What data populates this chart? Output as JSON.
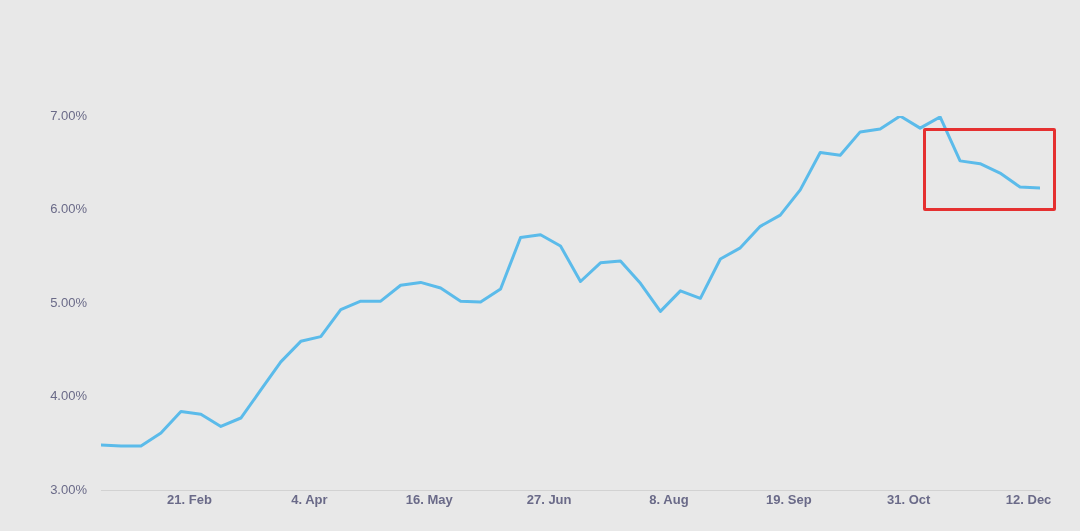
{
  "chart_data": {
    "type": "line",
    "x": [
      "--01-21",
      "--01-28",
      "--02-04",
      "--02-11",
      "--02-18",
      "--02-25",
      "--03-04",
      "--03-11",
      "--03-18",
      "--03-25",
      "--04-01",
      "--04-08",
      "--04-15",
      "--04-22",
      "--04-29",
      "--05-06",
      "--05-13",
      "--05-20",
      "--05-27",
      "--06-03",
      "--06-10",
      "--06-17",
      "--06-24",
      "--07-01",
      "--07-08",
      "--07-15",
      "--07-22",
      "--07-29",
      "--08-05",
      "--08-12",
      "--08-19",
      "--08-26",
      "--09-02",
      "--09-09",
      "--09-16",
      "--09-23",
      "--09-30",
      "--10-07",
      "--10-14",
      "--10-21",
      "--10-28",
      "--11-04",
      "--11-11",
      "--11-18",
      "--11-25",
      "--12-02",
      "--12-09",
      "--12-16"
    ],
    "series": [
      {
        "color": "#5bbbea",
        "values": [
          3.48,
          3.47,
          3.47,
          3.61,
          3.84,
          3.81,
          3.68,
          3.77,
          4.07,
          4.37,
          4.59,
          4.64,
          4.93,
          5.02,
          5.02,
          5.19,
          5.22,
          5.16,
          5.02,
          5.01,
          5.15,
          5.7,
          5.73,
          5.61,
          5.23,
          5.43,
          5.45,
          5.21,
          4.91,
          5.13,
          5.05,
          5.47,
          5.59,
          5.82,
          5.94,
          6.21,
          6.61,
          6.58,
          6.83,
          6.86,
          7.0,
          6.87,
          6.99,
          6.52,
          6.49,
          6.39,
          6.24,
          6.23
        ]
      }
    ],
    "xticks": [
      {
        "value": "--02-21",
        "label": "21. Feb"
      },
      {
        "value": "--04-04",
        "label": "4. Apr"
      },
      {
        "value": "--05-16",
        "label": "16. May"
      },
      {
        "value": "--06-27",
        "label": "27. Jun"
      },
      {
        "value": "--08-08",
        "label": "8. Aug"
      },
      {
        "value": "--09-19",
        "label": "19. Sep"
      },
      {
        "value": "--10-31",
        "label": "31. Oct"
      },
      {
        "value": "--12-12",
        "label": "12. Dec"
      }
    ],
    "xlim": [
      "--01-21",
      "--12-16"
    ],
    "ylim": [
      3,
      7
    ],
    "yticks": [
      {
        "value": 3,
        "label": "3.00%"
      },
      {
        "value": 4,
        "label": "4.00%"
      },
      {
        "value": 5,
        "label": "5.00%"
      },
      {
        "value": 6,
        "label": "6.00%"
      },
      {
        "value": 7,
        "label": "7.00%"
      }
    ],
    "grid": false,
    "legend": false,
    "marker": "none",
    "line_style": "solid"
  }
}
